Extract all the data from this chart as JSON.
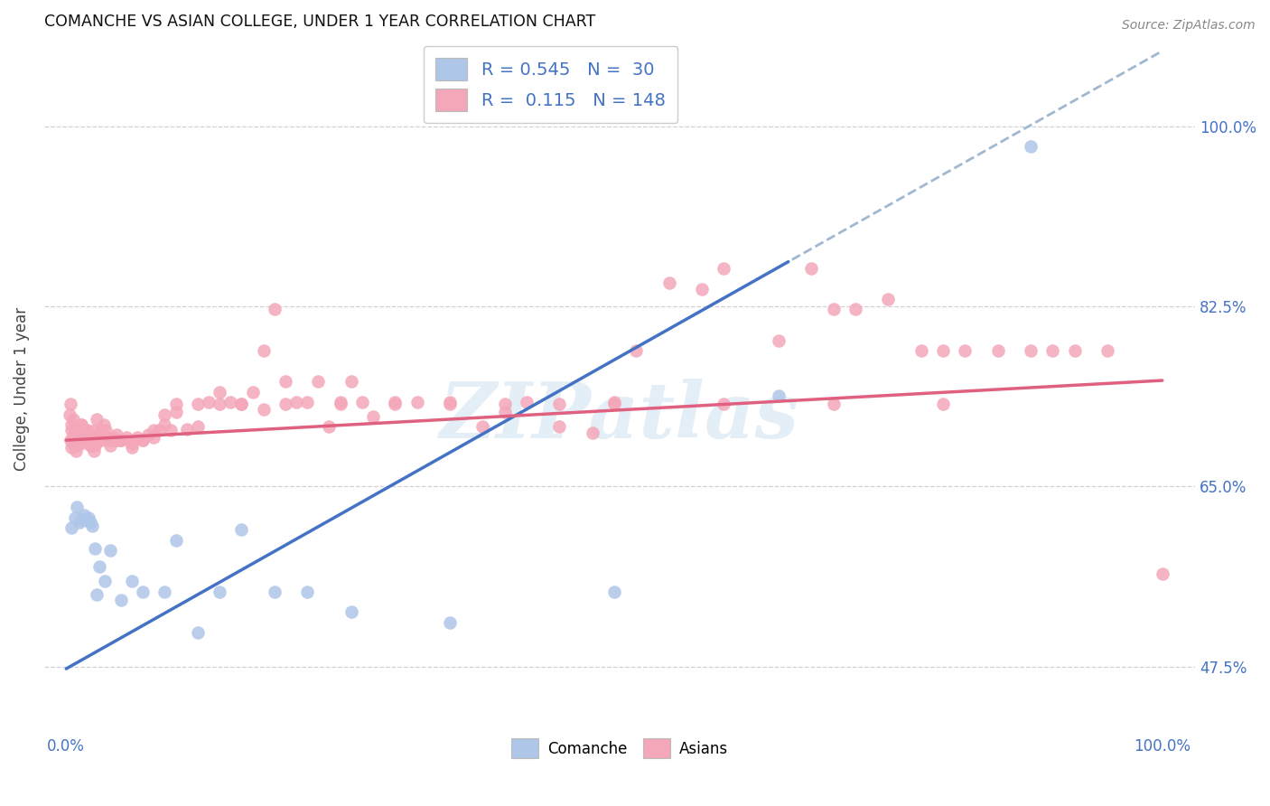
{
  "title": "COMANCHE VS ASIAN COLLEGE, UNDER 1 YEAR CORRELATION CHART",
  "source": "Source: ZipAtlas.com",
  "ylabel": "College, Under 1 year",
  "ytick_vals": [
    0.475,
    0.65,
    0.825,
    1.0
  ],
  "ytick_labels": [
    "47.5%",
    "65.0%",
    "82.5%",
    "100.0%"
  ],
  "xtick_vals": [
    0.0,
    1.0
  ],
  "xtick_labels": [
    "0.0%",
    "100.0%"
  ],
  "comanche_label": "Comanche",
  "asians_label": "Asians",
  "comanche_R": "0.545",
  "comanche_N": "30",
  "asians_R": "0.115",
  "asians_N": "148",
  "comanche_color": "#aec6e8",
  "asians_color": "#f4a7b9",
  "comanche_line_color": "#4472c4",
  "asians_line_color": "#e06080",
  "dashed_line_color": "#a0b8d0",
  "highlight_color": "#4472c4",
  "watermark": "ZIPatlas",
  "xlim": [
    -0.02,
    1.03
  ],
  "ylim": [
    0.41,
    1.08
  ],
  "comanche_x": [
    0.005,
    0.008,
    0.01,
    0.012,
    0.014,
    0.016,
    0.018,
    0.02,
    0.022,
    0.024,
    0.026,
    0.028,
    0.03,
    0.035,
    0.04,
    0.05,
    0.06,
    0.07,
    0.09,
    0.1,
    0.12,
    0.14,
    0.16,
    0.19,
    0.22,
    0.26,
    0.35,
    0.5,
    0.65,
    0.88
  ],
  "comanche_y": [
    0.61,
    0.62,
    0.63,
    0.615,
    0.618,
    0.622,
    0.618,
    0.62,
    0.615,
    0.612,
    0.59,
    0.545,
    0.572,
    0.558,
    0.588,
    0.54,
    0.558,
    0.548,
    0.548,
    0.598,
    0.508,
    0.548,
    0.608,
    0.548,
    0.548,
    0.528,
    0.518,
    0.548,
    0.738,
    0.98
  ],
  "asians_x": [
    0.003,
    0.004,
    0.005,
    0.005,
    0.006,
    0.006,
    0.007,
    0.007,
    0.008,
    0.008,
    0.009,
    0.009,
    0.01,
    0.01,
    0.011,
    0.011,
    0.012,
    0.013,
    0.014,
    0.015,
    0.015,
    0.016,
    0.017,
    0.018,
    0.019,
    0.02,
    0.021,
    0.022,
    0.023,
    0.024,
    0.025,
    0.026,
    0.027,
    0.028,
    0.029,
    0.03,
    0.032,
    0.034,
    0.036,
    0.038,
    0.04,
    0.042,
    0.044,
    0.046,
    0.048,
    0.05,
    0.055,
    0.06,
    0.065,
    0.07,
    0.075,
    0.08,
    0.085,
    0.09,
    0.095,
    0.1,
    0.11,
    0.12,
    0.13,
    0.14,
    0.15,
    0.16,
    0.17,
    0.18,
    0.19,
    0.2,
    0.21,
    0.22,
    0.23,
    0.24,
    0.25,
    0.26,
    0.27,
    0.28,
    0.3,
    0.32,
    0.35,
    0.38,
    0.4,
    0.42,
    0.45,
    0.48,
    0.5,
    0.52,
    0.55,
    0.58,
    0.6,
    0.65,
    0.68,
    0.7,
    0.72,
    0.75,
    0.78,
    0.8,
    0.82,
    0.85,
    0.88,
    0.9,
    0.92,
    0.95,
    0.004,
    0.005,
    0.006,
    0.007,
    0.008,
    0.009,
    0.01,
    0.011,
    0.012,
    0.013,
    0.014,
    0.015,
    0.016,
    0.017,
    0.018,
    0.019,
    0.02,
    0.022,
    0.024,
    0.026,
    0.028,
    0.03,
    0.032,
    0.034,
    0.036,
    0.04,
    0.045,
    0.05,
    0.06,
    0.07,
    0.08,
    0.09,
    0.1,
    0.12,
    0.14,
    0.16,
    0.18,
    0.2,
    0.25,
    0.3,
    0.35,
    0.4,
    0.45,
    0.5,
    0.6,
    0.7,
    0.8,
    1.0
  ],
  "asians_y": [
    0.72,
    0.73,
    0.705,
    0.71,
    0.698,
    0.715,
    0.7,
    0.69,
    0.698,
    0.705,
    0.685,
    0.69,
    0.698,
    0.705,
    0.7,
    0.695,
    0.7,
    0.695,
    0.71,
    0.7,
    0.695,
    0.7,
    0.695,
    0.7,
    0.705,
    0.7,
    0.695,
    0.7,
    0.69,
    0.695,
    0.685,
    0.69,
    0.698,
    0.695,
    0.695,
    0.698,
    0.695,
    0.7,
    0.698,
    0.695,
    0.695,
    0.698,
    0.695,
    0.7,
    0.695,
    0.695,
    0.698,
    0.692,
    0.698,
    0.695,
    0.7,
    0.698,
    0.705,
    0.71,
    0.705,
    0.722,
    0.706,
    0.708,
    0.732,
    0.742,
    0.732,
    0.73,
    0.742,
    0.782,
    0.822,
    0.752,
    0.732,
    0.732,
    0.752,
    0.708,
    0.732,
    0.752,
    0.732,
    0.718,
    0.732,
    0.732,
    0.732,
    0.708,
    0.722,
    0.732,
    0.708,
    0.702,
    0.732,
    0.782,
    0.848,
    0.842,
    0.862,
    0.792,
    0.862,
    0.822,
    0.822,
    0.832,
    0.782,
    0.782,
    0.782,
    0.782,
    0.782,
    0.782,
    0.782,
    0.782,
    0.695,
    0.688,
    0.695,
    0.7,
    0.695,
    0.698,
    0.7,
    0.698,
    0.695,
    0.692,
    0.71,
    0.695,
    0.7,
    0.695,
    0.7,
    0.705,
    0.695,
    0.69,
    0.695,
    0.705,
    0.715,
    0.695,
    0.705,
    0.71,
    0.705,
    0.69,
    0.695,
    0.695,
    0.688,
    0.695,
    0.705,
    0.72,
    0.73,
    0.73,
    0.73,
    0.73,
    0.725,
    0.73,
    0.73,
    0.73,
    0.73,
    0.73,
    0.73,
    0.73,
    0.73,
    0.73,
    0.73,
    0.565
  ]
}
